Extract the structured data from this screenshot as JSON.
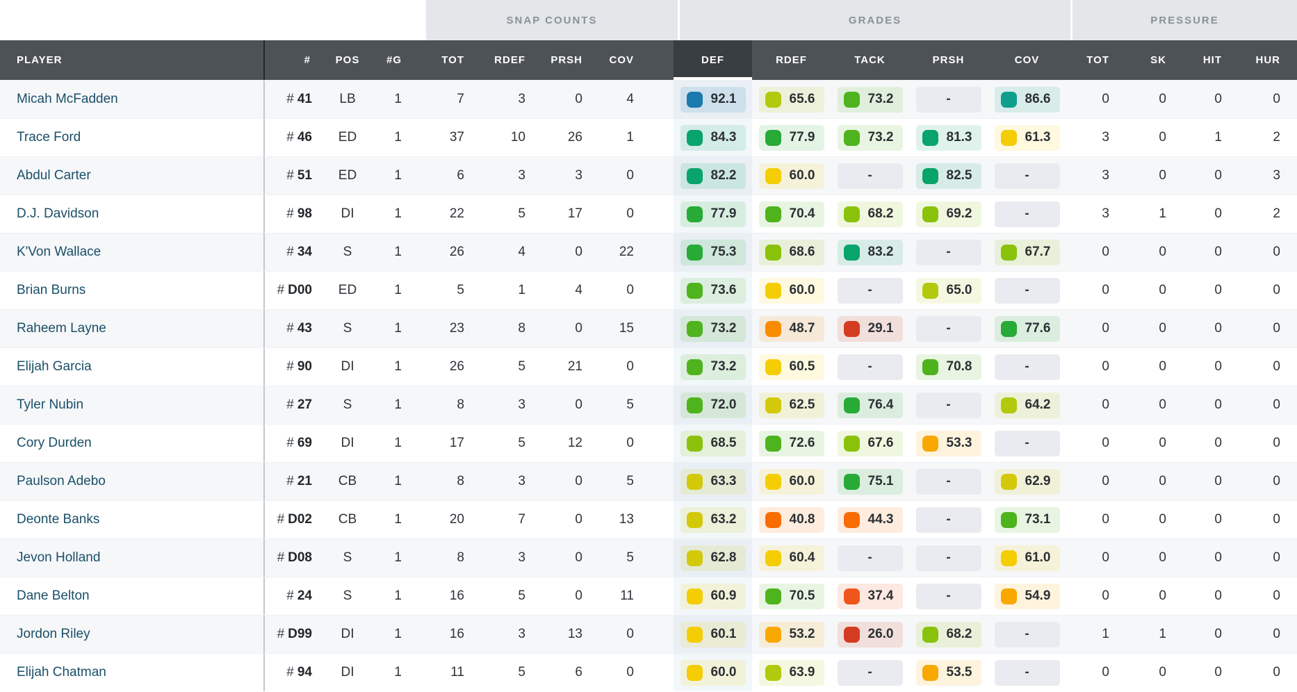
{
  "groups": {
    "snap": "SNAP COUNTS",
    "grades": "GRADES",
    "pressure": "PRESSURE"
  },
  "columns": {
    "player": "PLAYER",
    "jersey": "#",
    "pos": "POS",
    "games": "#G",
    "snap_tot": "TOT",
    "snap_rdef": "RDEF",
    "snap_prsh": "PRSH",
    "snap_cov": "COV",
    "grade_def": "DEF",
    "grade_rdef": "RDEF",
    "grade_tack": "TACK",
    "grade_prsh": "PRSH",
    "grade_cov": "COV",
    "press_tot": "TOT",
    "press_sk": "SK",
    "press_hit": "HIT",
    "press_hur": "HUR"
  },
  "sorted_column": "DEF",
  "dash": "-",
  "jersey_prefix": "#",
  "players": [
    {
      "name": "Micah McFadden",
      "jersey": "41",
      "pos": "LB",
      "games": 1,
      "snaps": [
        7,
        3,
        0,
        4
      ],
      "grades": [
        "92.1",
        "65.6",
        "73.2",
        null,
        "86.6"
      ],
      "pressure": [
        0,
        0,
        0,
        0
      ]
    },
    {
      "name": "Trace Ford",
      "jersey": "46",
      "pos": "ED",
      "games": 1,
      "snaps": [
        37,
        10,
        26,
        1
      ],
      "grades": [
        "84.3",
        "77.9",
        "73.2",
        "81.3",
        "61.3"
      ],
      "pressure": [
        3,
        0,
        1,
        2
      ]
    },
    {
      "name": "Abdul Carter",
      "jersey": "51",
      "pos": "ED",
      "games": 1,
      "snaps": [
        6,
        3,
        3,
        0
      ],
      "grades": [
        "82.2",
        "60.0",
        null,
        "82.5",
        null
      ],
      "pressure": [
        3,
        0,
        0,
        3
      ]
    },
    {
      "name": "D.J. Davidson",
      "jersey": "98",
      "pos": "DI",
      "games": 1,
      "snaps": [
        22,
        5,
        17,
        0
      ],
      "grades": [
        "77.9",
        "70.4",
        "68.2",
        "69.2",
        null
      ],
      "pressure": [
        3,
        1,
        0,
        2
      ]
    },
    {
      "name": "K'Von Wallace",
      "jersey": "34",
      "pos": "S",
      "games": 1,
      "snaps": [
        26,
        4,
        0,
        22
      ],
      "grades": [
        "75.3",
        "68.6",
        "83.2",
        null,
        "67.7"
      ],
      "pressure": [
        0,
        0,
        0,
        0
      ]
    },
    {
      "name": "Brian Burns",
      "jersey": "D00",
      "pos": "ED",
      "games": 1,
      "snaps": [
        5,
        1,
        4,
        0
      ],
      "grades": [
        "73.6",
        "60.0",
        null,
        "65.0",
        null
      ],
      "pressure": [
        0,
        0,
        0,
        0
      ]
    },
    {
      "name": "Raheem Layne",
      "jersey": "43",
      "pos": "S",
      "games": 1,
      "snaps": [
        23,
        8,
        0,
        15
      ],
      "grades": [
        "73.2",
        "48.7",
        "29.1",
        null,
        "77.6"
      ],
      "pressure": [
        0,
        0,
        0,
        0
      ]
    },
    {
      "name": "Elijah Garcia",
      "jersey": "90",
      "pos": "DI",
      "games": 1,
      "snaps": [
        26,
        5,
        21,
        0
      ],
      "grades": [
        "73.2",
        "60.5",
        null,
        "70.8",
        null
      ],
      "pressure": [
        0,
        0,
        0,
        0
      ]
    },
    {
      "name": "Tyler Nubin",
      "jersey": "27",
      "pos": "S",
      "games": 1,
      "snaps": [
        8,
        3,
        0,
        5
      ],
      "grades": [
        "72.0",
        "62.5",
        "76.4",
        null,
        "64.2"
      ],
      "pressure": [
        0,
        0,
        0,
        0
      ]
    },
    {
      "name": "Cory Durden",
      "jersey": "69",
      "pos": "DI",
      "games": 1,
      "snaps": [
        17,
        5,
        12,
        0
      ],
      "grades": [
        "68.5",
        "72.6",
        "67.6",
        "53.3",
        null
      ],
      "pressure": [
        0,
        0,
        0,
        0
      ]
    },
    {
      "name": "Paulson Adebo",
      "jersey": "21",
      "pos": "CB",
      "games": 1,
      "snaps": [
        8,
        3,
        0,
        5
      ],
      "grades": [
        "63.3",
        "60.0",
        "75.1",
        null,
        "62.9"
      ],
      "pressure": [
        0,
        0,
        0,
        0
      ]
    },
    {
      "name": "Deonte Banks",
      "jersey": "D02",
      "pos": "CB",
      "games": 1,
      "snaps": [
        20,
        7,
        0,
        13
      ],
      "grades": [
        "63.2",
        "40.8",
        "44.3",
        null,
        "73.1"
      ],
      "pressure": [
        0,
        0,
        0,
        0
      ]
    },
    {
      "name": "Jevon Holland",
      "jersey": "D08",
      "pos": "S",
      "games": 1,
      "snaps": [
        8,
        3,
        0,
        5
      ],
      "grades": [
        "62.8",
        "60.4",
        null,
        null,
        "61.0"
      ],
      "pressure": [
        0,
        0,
        0,
        0
      ]
    },
    {
      "name": "Dane Belton",
      "jersey": "24",
      "pos": "S",
      "games": 1,
      "snaps": [
        16,
        5,
        0,
        11
      ],
      "grades": [
        "60.9",
        "70.5",
        "37.4",
        null,
        "54.9"
      ],
      "pressure": [
        0,
        0,
        0,
        0
      ]
    },
    {
      "name": "Jordon Riley",
      "jersey": "D99",
      "pos": "DI",
      "games": 1,
      "snaps": [
        16,
        3,
        13,
        0
      ],
      "grades": [
        "60.1",
        "53.2",
        "26.0",
        "68.2",
        null
      ],
      "pressure": [
        1,
        1,
        0,
        0
      ]
    },
    {
      "name": "Elijah Chatman",
      "jersey": "94",
      "pos": "DI",
      "games": 1,
      "snaps": [
        11,
        5,
        6,
        0
      ],
      "grades": [
        "60.0",
        "63.9",
        null,
        "53.5",
        null
      ],
      "pressure": [
        0,
        0,
        0,
        0
      ]
    }
  ],
  "grade_palette": [
    {
      "min": 90,
      "color": "#1b7aae"
    },
    {
      "min": 85,
      "color": "#0f9f8d"
    },
    {
      "min": 80,
      "color": "#09a36c"
    },
    {
      "min": 75,
      "color": "#28aa36"
    },
    {
      "min": 70,
      "color": "#4fb31d"
    },
    {
      "min": 66,
      "color": "#8ac20b"
    },
    {
      "min": 63.5,
      "color": "#b2c90d"
    },
    {
      "min": 62,
      "color": "#d3c90a"
    },
    {
      "min": 59.5,
      "color": "#f4cd05"
    },
    {
      "min": 52.5,
      "color": "#f8a800"
    },
    {
      "min": 46,
      "color": "#f88c00"
    },
    {
      "min": 39.5,
      "color": "#f96c00"
    },
    {
      "min": 33,
      "color": "#ef561b"
    },
    {
      "min": 0,
      "color": "#d43c21"
    }
  ],
  "colors": {
    "header_bg": "#4d5257",
    "header_active_bg": "#393e43",
    "group_bg": "#e4e7ea",
    "group_text": "#8a9198",
    "row_alt_bg": "#f6f7f9",
    "player_link": "#1a4f68",
    "cell_text": "#2f3338",
    "dash_cell_bg": "#e9ebf0",
    "def_column_tint": "rgba(27,122,174,0.06)",
    "badge_tint_alpha": 0.13
  }
}
